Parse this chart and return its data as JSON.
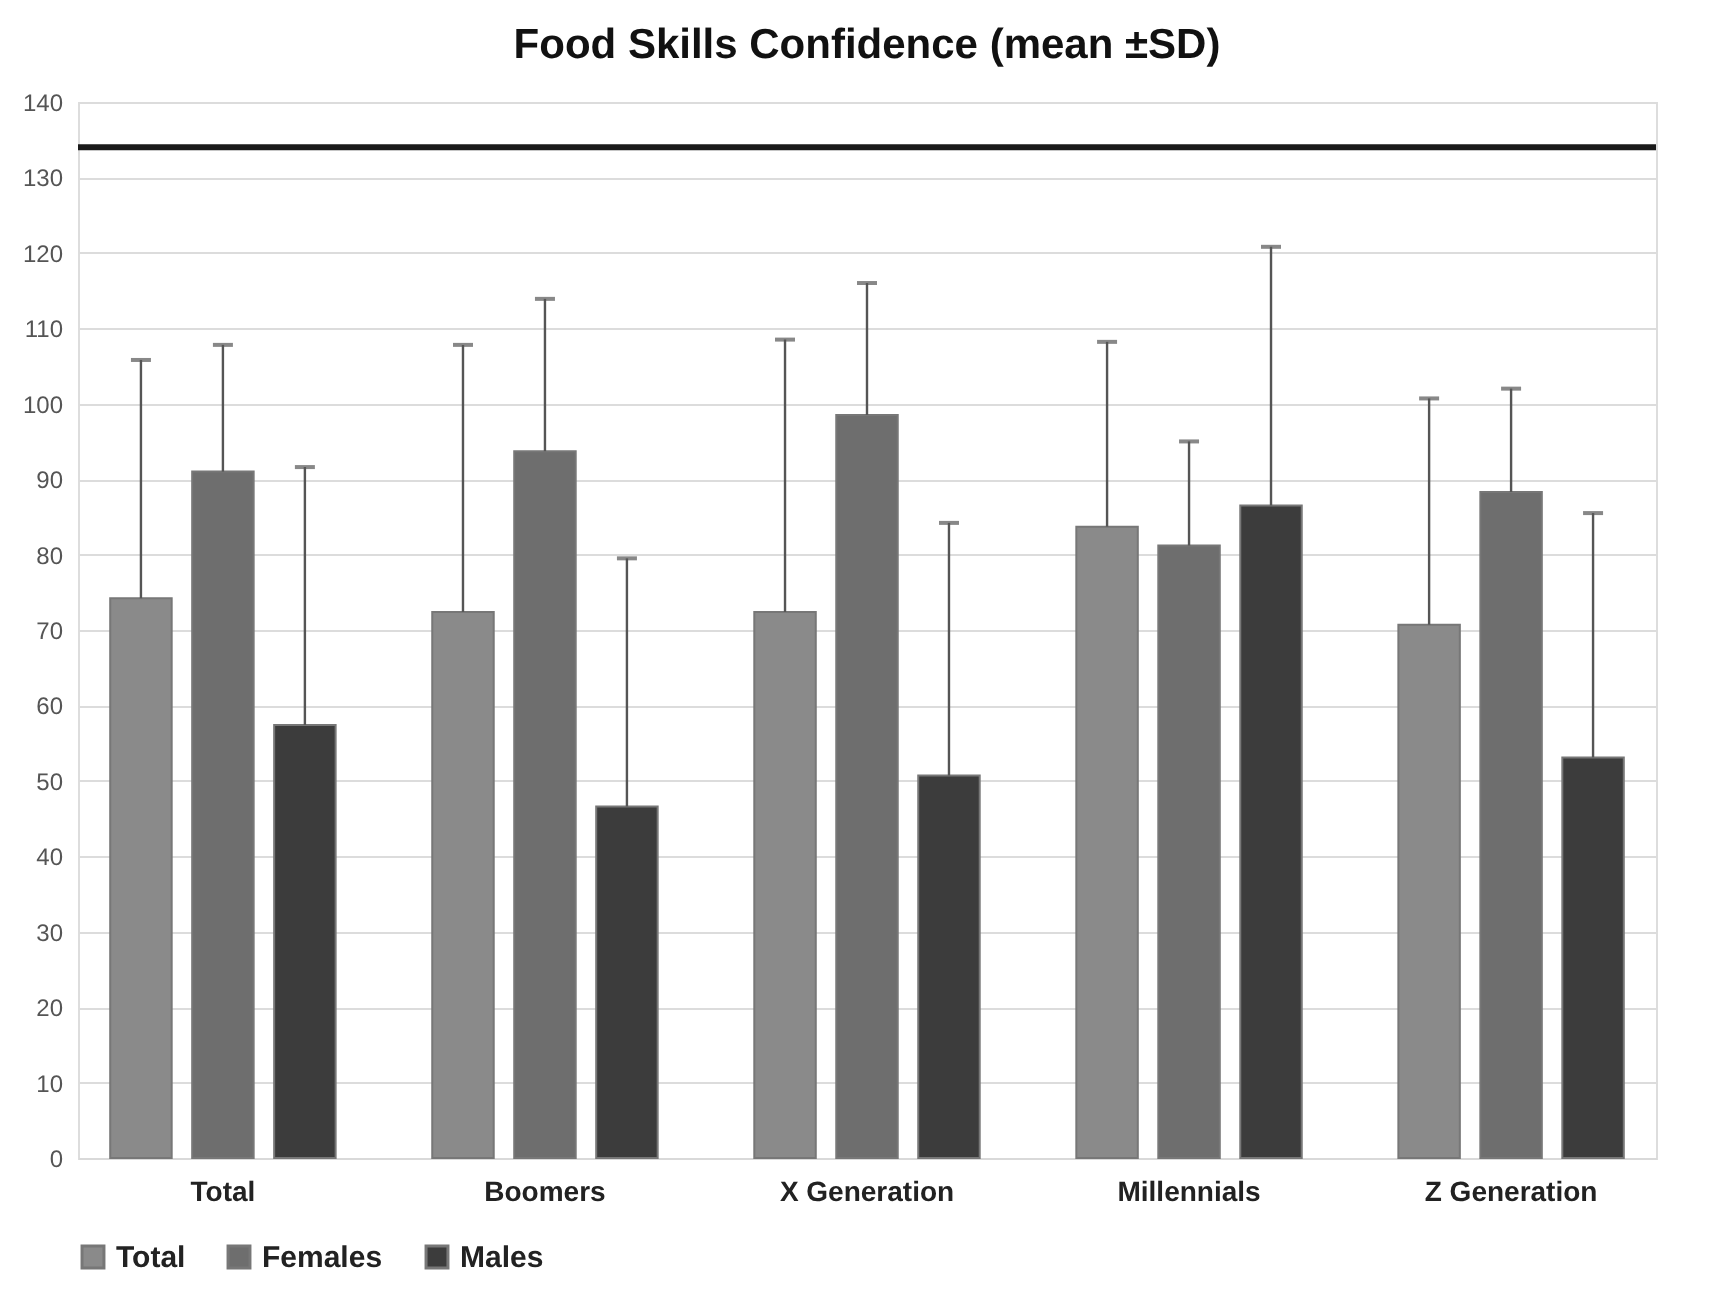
{
  "chart_data": {
    "type": "bar",
    "title": "Food Skills Confidence (mean ±SD)",
    "categories": [
      "Total",
      "Boomers",
      "X Generation",
      "Millennials",
      "Z Generation"
    ],
    "series": [
      {
        "name": "Total",
        "color": "#8a8a8a",
        "values": [
          74.2,
          72.4,
          72.4,
          83.7,
          70.7
        ],
        "errors": [
          [
            74.2,
            105.8
          ],
          [
            72.4,
            107.8
          ],
          [
            72.4,
            108.5
          ],
          [
            83.7,
            108.2
          ],
          [
            70.7,
            100.7
          ]
        ]
      },
      {
        "name": "Females",
        "color": "#6e6e6e",
        "values": [
          91,
          93.7,
          98.5,
          81.2,
          88.3
        ],
        "errors": [
          [
            91,
            107.8
          ],
          [
            93.7,
            113.9
          ],
          [
            98.5,
            116
          ],
          [
            81.2,
            95
          ],
          [
            88.3,
            102
          ]
        ]
      },
      {
        "name": "Males",
        "color": "#3c3c3c",
        "values": [
          57.4,
          46.6,
          50.7,
          86.5,
          53.1
        ],
        "errors": [
          [
            57.4,
            91.6
          ],
          [
            46.6,
            79.5
          ],
          [
            50.7,
            84.2
          ],
          [
            86.5,
            120.8
          ],
          [
            53.1,
            85.5
          ]
        ]
      }
    ],
    "ylim": [
      0,
      140
    ],
    "yticks": [
      0,
      10,
      20,
      30,
      40,
      50,
      60,
      70,
      80,
      90,
      100,
      110,
      120,
      130,
      140
    ],
    "ref_lines": [
      {
        "axis": "y",
        "value": 134,
        "color": "#1a1a1a"
      }
    ],
    "grid": "y",
    "legend": "bottom"
  }
}
